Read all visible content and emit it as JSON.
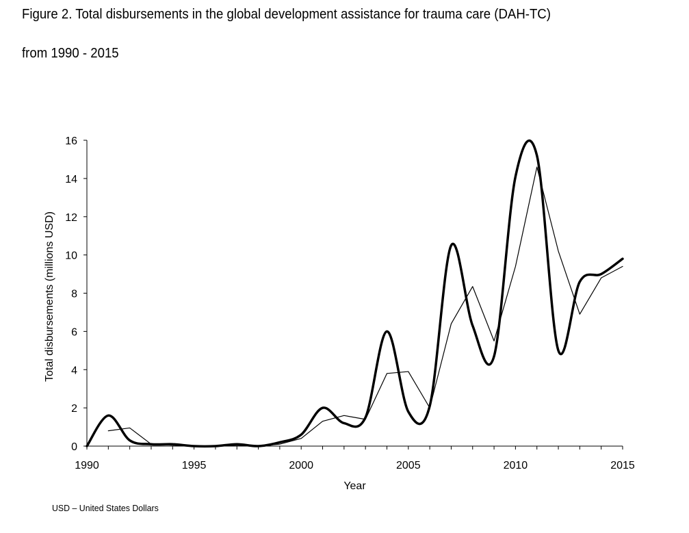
{
  "title_lines": [
    "Figure 2. Total disbursements in the global development assistance for trauma care (DAH-TC)",
    "from 1990 - 2015"
  ],
  "footnote": "USD – United States Dollars",
  "chart_data": {
    "type": "line",
    "xlabel": "Year",
    "ylabel": "Total disbursements (millions USD)",
    "xlim": [
      1990,
      2015
    ],
    "ylim": [
      0,
      16
    ],
    "x_ticks": [
      1990,
      1995,
      2000,
      2005,
      2010,
      2015
    ],
    "y_ticks": [
      0,
      2,
      4,
      6,
      8,
      10,
      12,
      14,
      16
    ],
    "grid": false,
    "legend": "none",
    "series": [
      {
        "style": "thick-smooth",
        "color": "#000000",
        "x": [
          1990,
          1991,
          1992,
          1993,
          1994,
          1995,
          1996,
          1997,
          1998,
          1999,
          2000,
          2001,
          2002,
          2003,
          2004,
          2005,
          2006,
          2007,
          2008,
          2009,
          2010,
          2011,
          2012,
          2013,
          2014,
          2015
        ],
        "y": [
          0,
          1.6,
          0.3,
          0.1,
          0.1,
          0,
          0,
          0.1,
          0,
          0.2,
          0.6,
          2.0,
          1.2,
          1.5,
          6.0,
          1.8,
          2.1,
          10.5,
          6.3,
          4.7,
          14.1,
          15.2,
          5.0,
          8.6,
          9.0,
          9.8
        ]
      },
      {
        "style": "thin",
        "color": "#000000",
        "x": [
          1991,
          1992,
          1993,
          1994,
          1995,
          1996,
          1997,
          1998,
          1999,
          2000,
          2001,
          2002,
          2003,
          2004,
          2005,
          2006,
          2007,
          2008,
          2009,
          2010,
          2011,
          2012,
          2013,
          2014,
          2015
        ],
        "y": [
          0.8,
          0.95,
          0.1,
          0.05,
          0,
          0,
          0.05,
          0,
          0.1,
          0.4,
          1.3,
          1.6,
          1.4,
          3.8,
          3.9,
          2.0,
          6.4,
          8.35,
          5.5,
          9.4,
          14.6,
          10.2,
          6.9,
          8.8,
          9.4
        ]
      }
    ]
  }
}
